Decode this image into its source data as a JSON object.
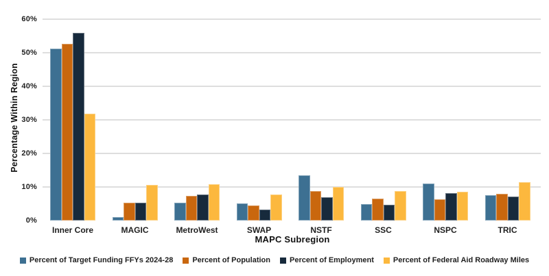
{
  "chart_data": {
    "type": "bar",
    "title": "",
    "xlabel": "MAPC Subregion",
    "ylabel": "Percentage Within Region",
    "categories": [
      "Inner Core",
      "MAGIC",
      "MetroWest",
      "SWAP",
      "NSTF",
      "SSC",
      "NSPC",
      "TRIC"
    ],
    "series": [
      {
        "name": "Percent of Target Funding FFYs 2024-28",
        "key": "target-funding",
        "color": "#3D7092",
        "values": [
          51.2,
          1.0,
          5.3,
          5.1,
          13.5,
          4.8,
          11.1,
          7.6
        ]
      },
      {
        "name": "Percent of Population",
        "key": "population",
        "color": "#C9670E",
        "values": [
          52.7,
          5.3,
          7.4,
          4.5,
          8.7,
          6.6,
          6.4,
          8.0
        ]
      },
      {
        "name": "Percent of Employment",
        "key": "employment",
        "color": "#172A3C",
        "values": [
          56.0,
          5.3,
          7.8,
          3.2,
          7.0,
          4.7,
          8.2,
          7.2
        ]
      },
      {
        "name": "Percent of Federal Aid Roadway Miles",
        "key": "federal-aid-roadway-miles",
        "color": "#FCB83E",
        "values": [
          31.8,
          10.6,
          10.8,
          7.8,
          10.0,
          8.8,
          8.5,
          11.5
        ]
      }
    ],
    "ylim": [
      0,
      60
    ],
    "ytick_step": 10,
    "ytick_suffix": "%",
    "ytick_labels": [
      "0%",
      "10%",
      "20%",
      "30%",
      "40%",
      "50%",
      "60%"
    ],
    "grid": true,
    "gridline_color": "#DEDEDE",
    "legend_position": "bottom",
    "background_color": "#FFFFFF",
    "text_color": "#1F1F1F"
  }
}
